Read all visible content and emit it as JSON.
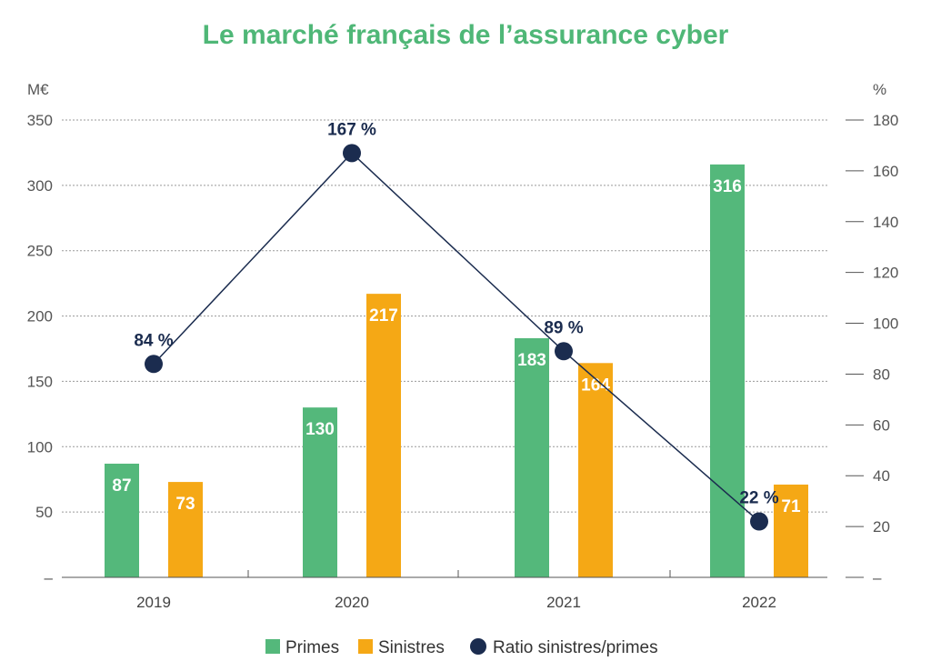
{
  "chart_data": {
    "type": "bar",
    "title": "Le marché français de l’assurance cyber",
    "y_left_unit": "M€",
    "y_right_unit": "%",
    "ylim_left": [
      0,
      350
    ],
    "ylim_right": [
      0,
      180
    ],
    "y_left_ticks": [
      {
        "value": 0,
        "label": "–"
      },
      {
        "value": 50,
        "label": "50"
      },
      {
        "value": 100,
        "label": "100"
      },
      {
        "value": 150,
        "label": "150"
      },
      {
        "value": 200,
        "label": "200"
      },
      {
        "value": 250,
        "label": "250"
      },
      {
        "value": 300,
        "label": "300"
      },
      {
        "value": 350,
        "label": "350"
      }
    ],
    "y_right_ticks": [
      {
        "value": 0,
        "label": "–"
      },
      {
        "value": 20,
        "label": "20"
      },
      {
        "value": 40,
        "label": "40"
      },
      {
        "value": 60,
        "label": "60"
      },
      {
        "value": 80,
        "label": "80"
      },
      {
        "value": 100,
        "label": "100"
      },
      {
        "value": 120,
        "label": "120"
      },
      {
        "value": 140,
        "label": "140"
      },
      {
        "value": 160,
        "label": "160"
      },
      {
        "value": 180,
        "label": "180"
      }
    ],
    "grid": true,
    "categories": [
      "2019",
      "2020",
      "2021",
      "2022"
    ],
    "series": [
      {
        "name": "Primes",
        "type": "bar",
        "axis": "left",
        "color": "#54b87b",
        "values": [
          87,
          130,
          183,
          316
        ],
        "labels": [
          "87",
          "130",
          "183",
          "316"
        ]
      },
      {
        "name": "Sinistres",
        "type": "bar",
        "axis": "left",
        "color": "#f5a815",
        "values": [
          73,
          217,
          164,
          71
        ],
        "labels": [
          "73",
          "217",
          "164",
          "71"
        ]
      },
      {
        "name": "Ratio sinistres/primes",
        "type": "line",
        "axis": "right",
        "color": "#1b2c4f",
        "values": [
          84,
          167,
          89,
          22
        ],
        "labels": [
          "84 %",
          "167 %",
          "89 %",
          "22 %"
        ]
      }
    ],
    "legend_position": "bottom-center"
  },
  "colors": {
    "title": "#4fb777",
    "grid": "#9a9a9a",
    "axis": "#555555"
  }
}
